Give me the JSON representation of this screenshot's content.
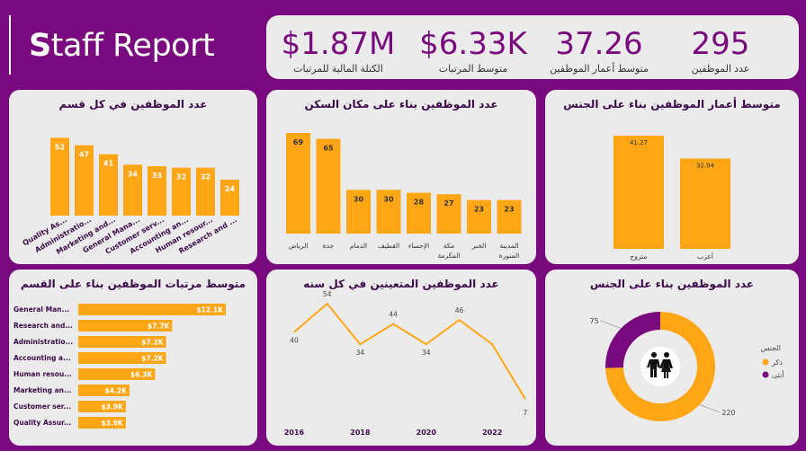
{
  "report": {
    "title_first": "S",
    "title_rest": "taff Report"
  },
  "kpis": [
    {
      "value": "$1.87M",
      "label": "الكتلة المالية للمرتبات"
    },
    {
      "value": "$6.33K",
      "label": "متوسط المرتبات"
    },
    {
      "value": "37.26",
      "label": "متوسط أعمار الموظفين"
    },
    {
      "value": "295",
      "label": "عدد الموظفين"
    }
  ],
  "colors": {
    "background": "#780A7D",
    "bar": "#FFA617",
    "card": "#EBEBEB",
    "purple": "#780A7D"
  },
  "chart_data": [
    {
      "type": "bar",
      "title": "عدد الموظفين في كل قسم",
      "categories": [
        "Quality As...",
        "Administratio...",
        "Marketing and...",
        "General Mana...",
        "Customer serv...",
        "Accounting an...",
        "Human resour...",
        "Research and ..."
      ],
      "values": [
        52,
        47,
        41,
        34,
        33,
        32,
        32,
        24
      ]
    },
    {
      "type": "bar",
      "title": "عدد الموظفين بناء على مكان السكن",
      "categories": [
        "الرياض",
        "جدة",
        "الدمام",
        "القطيف",
        "الإحساء",
        "مكة المكرمة",
        "الخبر",
        "المدينة المنورة"
      ],
      "values": [
        69,
        65,
        30,
        30,
        28,
        27,
        23,
        23
      ]
    },
    {
      "type": "bar",
      "title": "متوسط أعمار الموظفين بناء على الجنس",
      "categories": [
        "متزوج",
        "أعزب"
      ],
      "values": [
        41.27,
        32.94
      ]
    },
    {
      "type": "bar",
      "orientation": "horizontal",
      "title": "متوسط مرتبات الموظفين بناء على القسم",
      "categories": [
        "General Man...",
        "Research and...",
        "Administratio...",
        "Accounting a...",
        "Human resou...",
        "Marketing an...",
        "Customer ser...",
        "Quality Assur..."
      ],
      "values": [
        12.1,
        7.7,
        7.2,
        7.2,
        6.3,
        4.2,
        3.9,
        3.9
      ],
      "labels": [
        "$12.1K",
        "$7.7K",
        "$7.2K",
        "$7.2K",
        "$6.3K",
        "$4.2K",
        "$3.9K",
        "$3.9K"
      ]
    },
    {
      "type": "line",
      "title": "عدد الموظفين المتعينين في كل سنه",
      "x": [
        2016,
        2017,
        2018,
        2019,
        2020,
        2021,
        2022,
        2023
      ],
      "values": [
        40,
        54,
        34,
        44,
        34,
        46,
        34,
        7
      ],
      "value_labels": [
        "40",
        "54",
        "34",
        "44",
        "34",
        "46",
        "",
        "7"
      ],
      "xticks": [
        "2016",
        "2018",
        "2020",
        "2022"
      ]
    },
    {
      "type": "pie",
      "title": "عدد الموظفين بناء على الجنس",
      "categories": [
        "ذكر",
        "أنثى"
      ],
      "values": [
        220,
        75
      ],
      "colors": [
        "#FFA617",
        "#780A7D"
      ],
      "legend_title": "الجنس",
      "legend": "right"
    }
  ]
}
